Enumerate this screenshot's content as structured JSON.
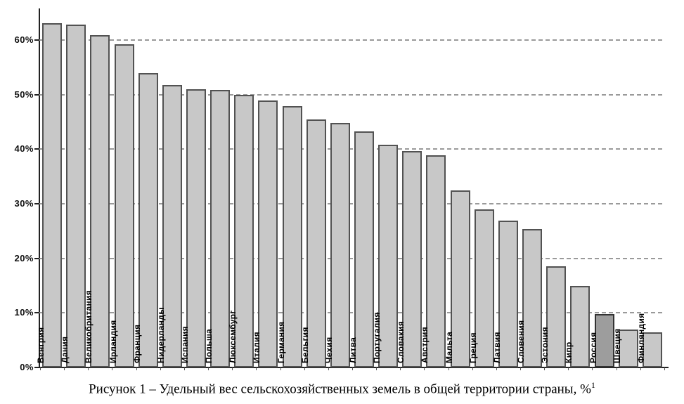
{
  "figure": {
    "caption": {
      "text": "Рисунок 1 – Удельный вес сельскохозяйственных земель в общей территории страны, %",
      "superscript": "1"
    }
  },
  "chart_data": {
    "type": "bar",
    "title": "Удельный вес сельскохозяйственных земель в общей территории страны, %",
    "categories": [
      "Венгрия",
      "Дания",
      "Великобритания",
      "Ирландия",
      "Франция",
      "Нидерланды",
      "Испания",
      "Польша",
      "Люксембург",
      "Италия",
      "Германия",
      "Бельгия",
      "Чехия",
      "Литва",
      "Португалия",
      "Словакия",
      "Австрия",
      "Мальта",
      "Греция",
      "Латвия",
      "Словения",
      "Эстония",
      "Кипр",
      "Россия",
      "Швеция",
      "Финляндия"
    ],
    "values": [
      63.1,
      62.8,
      60.9,
      59.2,
      53.9,
      51.8,
      51.0,
      50.9,
      49.9,
      48.9,
      47.9,
      45.4,
      44.8,
      43.3,
      40.8,
      39.6,
      38.9,
      32.4,
      29.0,
      26.9,
      25.4,
      18.5,
      14.9,
      9.8,
      6.9,
      6.5
    ],
    "highlight_category": "Россия",
    "xlabel": "",
    "ylabel": "",
    "y_axis": {
      "tick_labels": [
        "0%",
        "10%",
        "20%",
        "30%",
        "40%",
        "50%",
        "60%"
      ],
      "tick_values": [
        0,
        10,
        20,
        30,
        40,
        50,
        60
      ],
      "ylim": [
        0,
        65.7
      ]
    },
    "grid": "dashed-horizontal",
    "legend": "none",
    "colors": {
      "bar_fill": "#c8c8c8",
      "bar_border": "#525252",
      "highlight_fill": "#9d9d9d",
      "highlight_border": "#333333",
      "gridline": "#9a9a9a",
      "axis": "#222222",
      "label_text": "#000000"
    }
  }
}
